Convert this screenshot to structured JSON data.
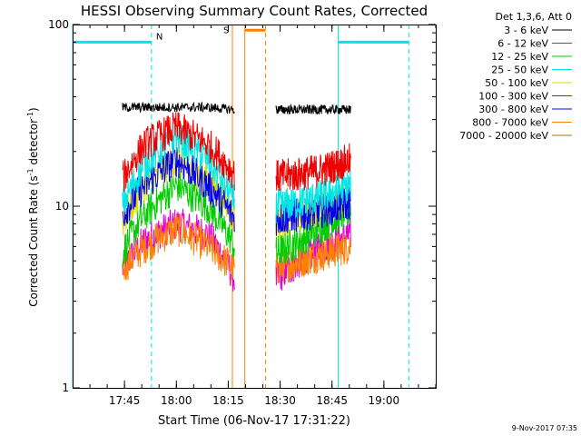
{
  "chart_data": {
    "type": "line",
    "title": "HESSI Observing Summary Count Rates, Corrected",
    "xlabel": "Start Time (06-Nov-17 17:31:22)",
    "ylabel_main": "Corrected Count Rate (s",
    "ylabel_sup1": "-1",
    "ylabel_mid": " detector",
    "ylabel_sup2": "-1",
    "ylabel_end": ")",
    "xlim_min": [
      17.5,
      19.25
    ],
    "ylim": [
      1,
      100
    ],
    "y_scale": "log",
    "grid": false,
    "x_ticks": [
      {
        "min": 17.75,
        "label": "17:45"
      },
      {
        "min": 18.0,
        "label": "18:00"
      },
      {
        "min": 18.25,
        "label": "18:15"
      },
      {
        "min": 18.5,
        "label": "18:30"
      },
      {
        "min": 18.75,
        "label": "18:45"
      },
      {
        "min": 19.0,
        "label": "19:00"
      }
    ],
    "y_ticks": [
      {
        "value": 1,
        "label": "1"
      },
      {
        "value": 10,
        "label": "10"
      },
      {
        "value": 100,
        "label": "100"
      }
    ],
    "legend_title": "Det 1,3,6, Att 0",
    "legend_position": "right",
    "series": [
      {
        "name": "3 - 6 keV",
        "color": "#000000",
        "seg1": [
          [
            17.74,
            35
          ],
          [
            17.85,
            35
          ],
          [
            18.0,
            35
          ],
          [
            18.15,
            35
          ],
          [
            18.28,
            34
          ]
        ],
        "seg2": [
          [
            18.48,
            34
          ],
          [
            18.6,
            34
          ],
          [
            18.72,
            34
          ],
          [
            18.84,
            34
          ]
        ]
      },
      {
        "name": "6 - 12 keV",
        "color": "#dd00dd",
        "seg1": [
          [
            17.74,
            4.5
          ],
          [
            17.85,
            6.5
          ],
          [
            18.0,
            8
          ],
          [
            18.15,
            7
          ],
          [
            18.28,
            4
          ]
        ],
        "seg2": [
          [
            18.48,
            4
          ],
          [
            18.6,
            5
          ],
          [
            18.72,
            6
          ],
          [
            18.84,
            7
          ]
        ]
      },
      {
        "name": "12 - 25 keV",
        "color": "#00cc00",
        "seg1": [
          [
            17.74,
            5.5
          ],
          [
            17.85,
            9
          ],
          [
            18.0,
            13
          ],
          [
            18.15,
            10
          ],
          [
            18.28,
            6
          ]
        ],
        "seg2": [
          [
            18.48,
            5.5
          ],
          [
            18.6,
            6.5
          ],
          [
            18.72,
            8
          ],
          [
            18.84,
            9.5
          ]
        ]
      },
      {
        "name": "25 - 50 keV",
        "color": "#00e5e5",
        "seg1": [
          [
            17.74,
            10
          ],
          [
            17.85,
            17
          ],
          [
            18.0,
            24
          ],
          [
            18.15,
            18
          ],
          [
            18.28,
            10.5
          ]
        ],
        "seg2": [
          [
            18.48,
            10
          ],
          [
            18.6,
            10.5
          ],
          [
            18.72,
            11.5
          ],
          [
            18.84,
            13
          ]
        ]
      },
      {
        "name": "50 - 100 keV",
        "color": "#dddd00",
        "seg1": [
          [
            17.74,
            8
          ],
          [
            17.85,
            13
          ],
          [
            18.0,
            18
          ],
          [
            18.15,
            14
          ],
          [
            18.28,
            8.5
          ]
        ],
        "seg2": [
          [
            18.48,
            8
          ],
          [
            18.6,
            9
          ],
          [
            18.72,
            10
          ],
          [
            18.84,
            11
          ]
        ]
      },
      {
        "name": "100 - 300 keV",
        "color": "#ee0000",
        "seg1": [
          [
            17.74,
            14
          ],
          [
            17.85,
            22
          ],
          [
            18.0,
            27
          ],
          [
            18.15,
            22
          ],
          [
            18.28,
            15
          ]
        ],
        "seg2": [
          [
            18.48,
            14.5
          ],
          [
            18.6,
            15
          ],
          [
            18.72,
            16
          ],
          [
            18.84,
            18
          ]
        ]
      },
      {
        "name": "300 - 800 keV",
        "color": "#0000ee",
        "seg1": [
          [
            17.74,
            9
          ],
          [
            17.85,
            13
          ],
          [
            18.0,
            18
          ],
          [
            18.15,
            13
          ],
          [
            18.28,
            8.5
          ]
        ],
        "seg2": [
          [
            18.48,
            8.5
          ],
          [
            18.6,
            9
          ],
          [
            18.72,
            9.5
          ],
          [
            18.84,
            10.5
          ]
        ]
      },
      {
        "name": "800 - 7000 keV",
        "color": "#ff8000",
        "seg1": [
          [
            17.74,
            4.5
          ],
          [
            17.85,
            6
          ],
          [
            18.0,
            7.5
          ],
          [
            18.15,
            6
          ],
          [
            18.28,
            4.5
          ]
        ],
        "seg2": [
          [
            18.48,
            4.5
          ],
          [
            18.6,
            5
          ],
          [
            18.72,
            5.5
          ],
          [
            18.84,
            6
          ]
        ]
      },
      {
        "name": "7000 - 20000 keV",
        "color": "#a07000",
        "seg1": [],
        "seg2": []
      }
    ],
    "annotations": {
      "night_label": "N",
      "saa_label": "S",
      "night_color": "#00e5e5",
      "saa_color": "#ff8000",
      "night_bars": [
        {
          "from": 17.5,
          "to": 17.88,
          "level": 80
        },
        {
          "from": 18.78,
          "to": 19.12,
          "level": 80
        }
      ],
      "night_solid": [
        17.5,
        18.78
      ],
      "night_dashed": [
        17.88,
        19.12
      ],
      "saa_bar": {
        "from": 18.33,
        "to": 18.43,
        "level": 93
      },
      "saa_solid": [
        18.27,
        18.33
      ],
      "saa_dashed": [
        18.43
      ]
    },
    "timestamp": "9-Nov-2017 07:35"
  }
}
